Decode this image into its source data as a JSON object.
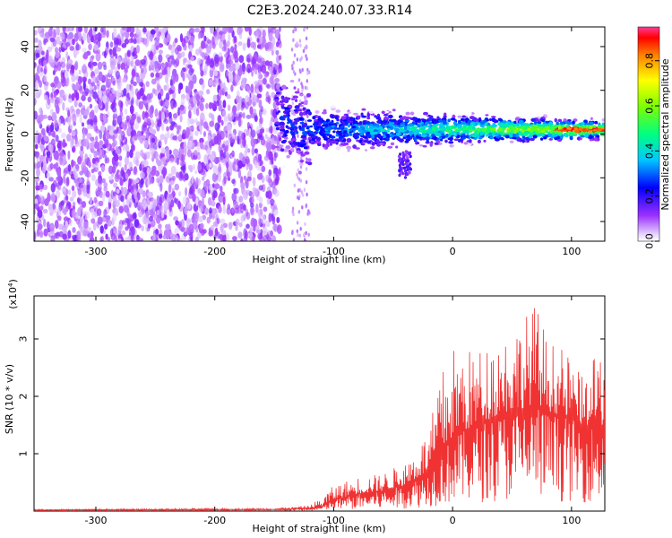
{
  "title": "C2E3.2024.240.07.33.R14",
  "chart_data": [
    {
      "type": "heatmap",
      "xlabel": "Height of straight line (km)",
      "ylabel": "Frequency (Hz)",
      "xlim": [
        -352,
        128
      ],
      "ylim": [
        -49,
        49
      ],
      "x_ticks": [
        "-300",
        "-200",
        "-100",
        "0",
        "100"
      ],
      "y_ticks": [
        "40",
        "20",
        "0",
        "-20",
        "-40"
      ],
      "colorbar": {
        "label": "Normalized spectral amplitude",
        "range": [
          0.0,
          0.95
        ],
        "ticks": [
          "0.0",
          "0.2",
          "0.4",
          "0.6",
          "0.8"
        ]
      },
      "description_points": {
        "noise_region_x": [
          -352,
          -140
        ],
        "signal_center_freq_hz": 2,
        "signal_start_x": -145,
        "peak_amplitude_x": [
          90,
          120
        ]
      }
    },
    {
      "type": "line",
      "xlabel": "Height of straight line (km)",
      "ylabel": "SNR (10 * v/v)",
      "y_multiplier": "(x10",
      "y_multiplier_exp": "4",
      "y_multiplier_close": ")",
      "xlim": [
        -352,
        128
      ],
      "ylim": [
        0,
        3.75
      ],
      "x_ticks": [
        "-300",
        "-200",
        "-100",
        "0",
        "100"
      ],
      "y_ticks": [
        "3",
        "2",
        "1"
      ],
      "color": "#f03232",
      "envelope": {
        "x": [
          -352,
          -150,
          -120,
          -110,
          -100,
          -80,
          -60,
          -40,
          -20,
          -10,
          0,
          20,
          40,
          60,
          70,
          80,
          100,
          110,
          128
        ],
        "mean": [
          0.02,
          0.03,
          0.05,
          0.08,
          0.2,
          0.3,
          0.35,
          0.45,
          0.7,
          1.0,
          1.3,
          1.5,
          1.7,
          1.8,
          1.9,
          1.75,
          1.6,
          1.5,
          1.5
        ],
        "peak": [
          0.03,
          0.05,
          0.1,
          0.25,
          0.45,
          0.6,
          0.65,
          0.85,
          1.4,
          2.4,
          2.9,
          2.8,
          3.1,
          3.4,
          3.65,
          3.0,
          2.7,
          2.3,
          3.0
        ]
      }
    }
  ]
}
